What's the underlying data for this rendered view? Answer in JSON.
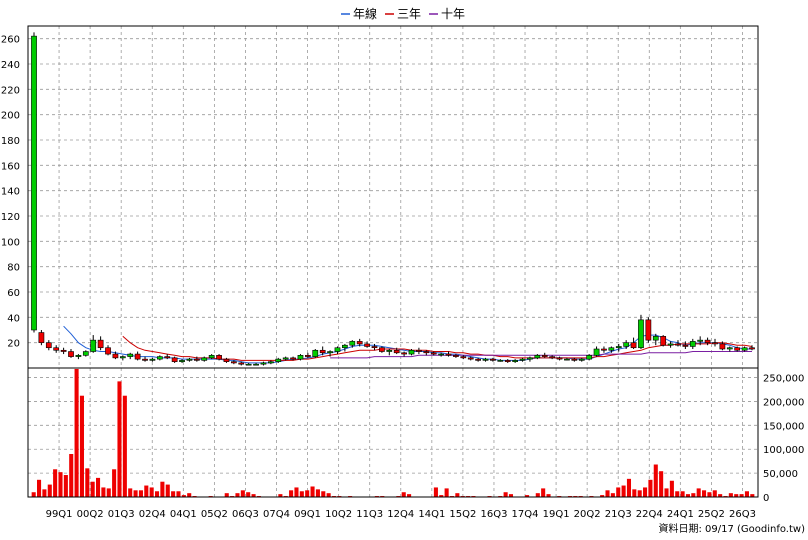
{
  "legend": [
    {
      "label": "年線",
      "color": "#1f5fd6"
    },
    {
      "label": "三年",
      "color": "#cc0000"
    },
    {
      "label": "十年",
      "color": "#7a1fa2"
    }
  ],
  "footer": "資料日期: 09/17  (Goodinfo.tw)",
  "chart_data": [
    {
      "type": "candlestick",
      "title": "",
      "xlabel": "",
      "ylabel": "",
      "ylim": [
        0,
        270
      ],
      "yticks": [
        20,
        40,
        60,
        80,
        100,
        120,
        140,
        160,
        180,
        200,
        220,
        240,
        260
      ],
      "xticks": [
        "99Q1",
        "00Q2",
        "01Q3",
        "02Q4",
        "04Q1",
        "05Q2",
        "06Q3",
        "07Q4",
        "09Q1",
        "10Q2",
        "11Q3",
        "12Q4",
        "14Q1",
        "15Q2",
        "16Q3",
        "17Q4",
        "19Q1",
        "20Q2",
        "21Q3",
        "22Q4",
        "24Q1",
        "25Q2",
        "26Q3"
      ],
      "grid": true,
      "up_color": "#00cc00",
      "down_color": "#ee0000",
      "candles_ohlc": [
        [
          30,
          265,
          28,
          262
        ],
        [
          28,
          30,
          18,
          20
        ],
        [
          20,
          22,
          14,
          16
        ],
        [
          16,
          18,
          12,
          14
        ],
        [
          14,
          16,
          11,
          13
        ],
        [
          13,
          15,
          8,
          9
        ],
        [
          9,
          11,
          7,
          10
        ],
        [
          10,
          14,
          9,
          13
        ],
        [
          13,
          26,
          12,
          22
        ],
        [
          22,
          25,
          14,
          16
        ],
        [
          16,
          18,
          10,
          11
        ],
        [
          11,
          13,
          7,
          8
        ],
        [
          8,
          10,
          6,
          9
        ],
        [
          9,
          12,
          7,
          11
        ],
        [
          11,
          13,
          6,
          7
        ],
        [
          7,
          9,
          5,
          6
        ],
        [
          6,
          8,
          5,
          7
        ],
        [
          7,
          10,
          6,
          9
        ],
        [
          9,
          11,
          7,
          8
        ],
        [
          8,
          9,
          4,
          5
        ],
        [
          5,
          7,
          4,
          6
        ],
        [
          6,
          8,
          5,
          7
        ],
        [
          7,
          9,
          5,
          6
        ],
        [
          6,
          9,
          5,
          8
        ],
        [
          8,
          11,
          7,
          10
        ],
        [
          10,
          11,
          6,
          7
        ],
        [
          7,
          8,
          4,
          5
        ],
        [
          5,
          6,
          3,
          4
        ],
        [
          4,
          5,
          2,
          3
        ],
        [
          3,
          4,
          2,
          3
        ],
        [
          3,
          4,
          2,
          3
        ],
        [
          3,
          5,
          2,
          4
        ],
        [
          4,
          6,
          3,
          5
        ],
        [
          5,
          8,
          4,
          7
        ],
        [
          7,
          9,
          6,
          8
        ],
        [
          8,
          9,
          6,
          7
        ],
        [
          7,
          11,
          6,
          10
        ],
        [
          10,
          12,
          8,
          9
        ],
        [
          9,
          15,
          8,
          14
        ],
        [
          14,
          17,
          10,
          12
        ],
        [
          12,
          14,
          9,
          13
        ],
        [
          13,
          17,
          11,
          16
        ],
        [
          16,
          19,
          13,
          18
        ],
        [
          18,
          22,
          16,
          21
        ],
        [
          21,
          23,
          17,
          19
        ],
        [
          19,
          21,
          16,
          17
        ],
        [
          17,
          19,
          14,
          16
        ],
        [
          16,
          17,
          12,
          13
        ],
        [
          13,
          15,
          10,
          14
        ],
        [
          14,
          16,
          11,
          12
        ],
        [
          12,
          13,
          9,
          11
        ],
        [
          11,
          15,
          10,
          14
        ],
        [
          14,
          16,
          11,
          13
        ],
        [
          13,
          14,
          10,
          12
        ],
        [
          12,
          13,
          10,
          11
        ],
        [
          11,
          12,
          9,
          11
        ],
        [
          11,
          13,
          9,
          10
        ],
        [
          10,
          11,
          8,
          9
        ],
        [
          9,
          10,
          7,
          8
        ],
        [
          8,
          9,
          6,
          7
        ],
        [
          7,
          8,
          5,
          6
        ],
        [
          6,
          8,
          5,
          7
        ],
        [
          7,
          8,
          5,
          6
        ],
        [
          6,
          7,
          5,
          6
        ],
        [
          6,
          7,
          4,
          5
        ],
        [
          5,
          7,
          4,
          6
        ],
        [
          6,
          8,
          5,
          7
        ],
        [
          7,
          9,
          5,
          8
        ],
        [
          8,
          11,
          7,
          10
        ],
        [
          10,
          12,
          8,
          9
        ],
        [
          9,
          10,
          7,
          8
        ],
        [
          8,
          9,
          6,
          7
        ],
        [
          7,
          8,
          6,
          7
        ],
        [
          7,
          8,
          5,
          6
        ],
        [
          6,
          8,
          5,
          7
        ],
        [
          7,
          11,
          6,
          10
        ],
        [
          10,
          17,
          9,
          15
        ],
        [
          15,
          17,
          12,
          14
        ],
        [
          14,
          17,
          12,
          16
        ],
        [
          16,
          19,
          13,
          17
        ],
        [
          17,
          22,
          15,
          20
        ],
        [
          20,
          24,
          15,
          16
        ],
        [
          16,
          42,
          15,
          38
        ],
        [
          38,
          40,
          20,
          22
        ],
        [
          22,
          27,
          18,
          25
        ],
        [
          25,
          26,
          17,
          18
        ],
        [
          18,
          21,
          16,
          19
        ],
        [
          19,
          22,
          17,
          18
        ],
        [
          18,
          21,
          15,
          17
        ],
        [
          17,
          23,
          15,
          21
        ],
        [
          21,
          25,
          18,
          22
        ],
        [
          22,
          24,
          18,
          20
        ],
        [
          20,
          23,
          17,
          19
        ],
        [
          19,
          21,
          14,
          15
        ],
        [
          15,
          17,
          13,
          16
        ],
        [
          16,
          17,
          13,
          14
        ],
        [
          14,
          17,
          13,
          16
        ],
        [
          16,
          18,
          14,
          15
        ]
      ],
      "series": [
        {
          "name": "年線",
          "color": "#1f5fd6",
          "values": [
            null,
            null,
            null,
            null,
            33,
            27,
            20,
            16,
            14,
            13,
            13,
            12,
            11,
            10,
            9,
            9,
            9,
            8,
            8,
            8,
            7,
            7,
            7,
            7,
            7,
            7,
            6,
            6,
            5,
            4,
            4,
            4,
            4,
            5,
            6,
            7,
            7,
            8,
            9,
            11,
            12,
            13,
            15,
            17,
            18,
            18,
            18,
            17,
            16,
            15,
            14,
            13,
            13,
            13,
            12,
            12,
            11,
            11,
            10,
            9,
            8,
            7,
            7,
            6,
            6,
            6,
            6,
            7,
            8,
            8,
            8,
            8,
            8,
            7,
            7,
            7,
            9,
            11,
            13,
            15,
            16,
            20,
            25,
            26,
            26,
            24,
            21,
            20,
            18,
            19,
            20,
            20,
            20,
            19,
            18,
            16,
            15,
            15
          ]
        },
        {
          "name": "三年",
          "color": "#cc0000",
          "values": [
            null,
            null,
            null,
            null,
            null,
            null,
            null,
            null,
            null,
            null,
            null,
            null,
            25,
            20,
            16,
            14,
            13,
            12,
            11,
            10,
            9,
            9,
            8,
            8,
            8,
            7,
            7,
            7,
            6,
            6,
            6,
            6,
            6,
            6,
            6,
            6,
            7,
            7,
            8,
            9,
            10,
            11,
            12,
            13,
            14,
            14,
            14,
            15,
            15,
            15,
            15,
            14,
            14,
            14,
            13,
            13,
            13,
            12,
            12,
            11,
            11,
            10,
            10,
            9,
            9,
            8,
            8,
            8,
            8,
            8,
            8,
            8,
            8,
            8,
            8,
            8,
            9,
            9,
            10,
            11,
            12,
            13,
            14,
            16,
            17,
            18,
            18,
            19,
            19,
            19,
            19,
            19,
            20,
            20,
            19,
            18,
            18,
            17
          ]
        },
        {
          "name": "十年",
          "color": "#7a1fa2",
          "values": [
            null,
            null,
            null,
            null,
            null,
            null,
            null,
            null,
            null,
            null,
            null,
            null,
            null,
            null,
            null,
            null,
            null,
            null,
            null,
            null,
            null,
            null,
            null,
            null,
            null,
            null,
            null,
            null,
            null,
            null,
            null,
            null,
            null,
            null,
            null,
            null,
            null,
            null,
            null,
            null,
            8,
            8,
            8,
            8,
            8,
            8,
            9,
            9,
            9,
            9,
            9,
            9,
            10,
            10,
            10,
            10,
            10,
            10,
            10,
            10,
            10,
            10,
            10,
            10,
            10,
            10,
            10,
            10,
            10,
            10,
            10,
            10,
            10,
            10,
            10,
            10,
            10,
            11,
            11,
            11,
            11,
            11,
            11,
            12,
            12,
            12,
            12,
            12,
            12,
            13,
            13,
            13,
            13,
            13,
            13,
            13,
            13,
            13
          ]
        }
      ]
    },
    {
      "type": "bar",
      "title": "",
      "xlabel": "",
      "ylabel": "",
      "ylim": [
        0,
        270000
      ],
      "yticks": [
        0,
        50000,
        100000,
        150000,
        200000,
        250000
      ],
      "ytick_labels": [
        "0",
        "50,000",
        "100,000",
        "150,000",
        "200,000",
        "250,000"
      ],
      "color": "#ee0000",
      "values": [
        10000,
        36000,
        16000,
        26000,
        58000,
        52000,
        46000,
        90000,
        268000,
        212000,
        60000,
        32000,
        40000,
        20000,
        18000,
        58000,
        242000,
        212000,
        18000,
        14000,
        14000,
        24000,
        20000,
        12000,
        32000,
        26000,
        12000,
        12000,
        4000,
        8000,
        2000,
        0,
        0,
        2000,
        0,
        0,
        8000,
        2000,
        8000,
        14000,
        10000,
        6000,
        2000,
        1000,
        0,
        0,
        6000,
        2000,
        14000,
        20000,
        12000,
        14000,
        22000,
        16000,
        12000,
        8000,
        2000,
        2000,
        1000,
        2000,
        0,
        0,
        0,
        0,
        2000,
        2000,
        0,
        0,
        2000,
        10000,
        6000,
        0,
        0,
        0,
        0,
        20000,
        4000,
        18000,
        2000,
        8000,
        2000,
        2000,
        2000,
        0,
        0,
        2000,
        0,
        2000,
        10000,
        6000,
        0,
        0,
        4000,
        0,
        8000,
        18000,
        6000,
        0,
        2000,
        0,
        2000,
        2000,
        2000,
        0,
        2000,
        1000,
        4000,
        14000,
        8000,
        20000,
        24000,
        38000,
        16000,
        14000,
        20000,
        36000,
        68000,
        54000,
        18000,
        34000,
        12000,
        12000,
        6000,
        8000,
        18000,
        14000,
        10000,
        14000,
        6000,
        2000,
        8000,
        6000,
        6000,
        12000,
        6000
      ]
    }
  ]
}
